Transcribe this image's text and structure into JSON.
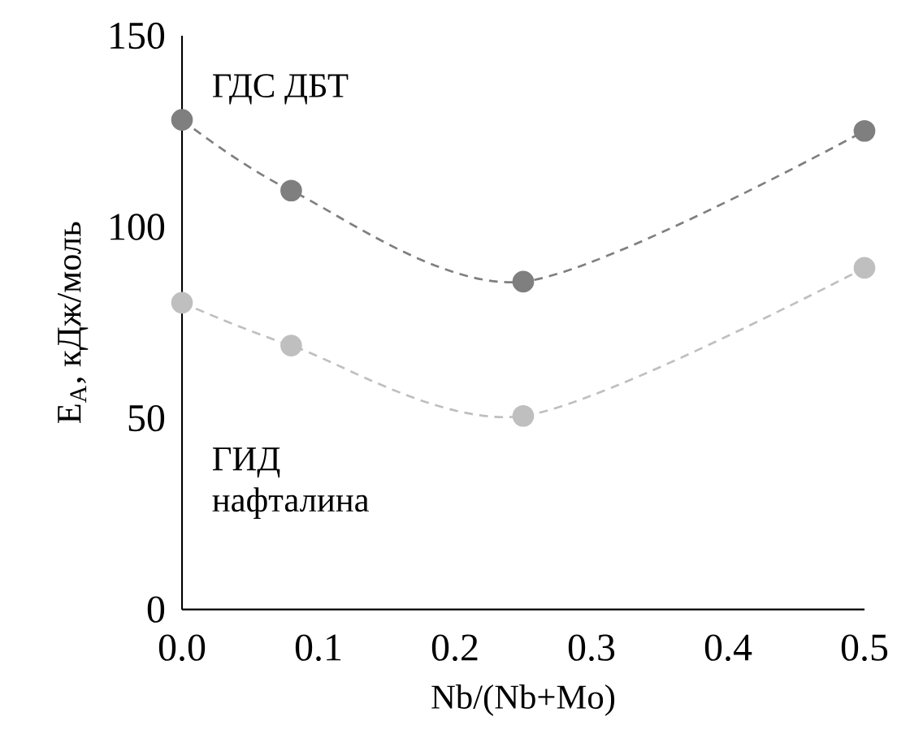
{
  "chart_data": {
    "type": "line",
    "xlabel": "Nb/(Nb+Mo)",
    "ylabel": "E$_{A}$, кДж/моль",
    "x": [
      0,
      0.08,
      0.25,
      0.5
    ],
    "series": [
      {
        "color": "#7f7f7f",
        "values": [
          128,
          109.5,
          85.7,
          125.1
        ]
      },
      {
        "color": "#bfbfbf",
        "values": [
          80.2,
          69,
          50.6,
          89.3
        ]
      }
    ],
    "annotations": [
      "ГДС ДБТ",
      "ГИД нафталина"
    ],
    "xlim": [
      0,
      0.5
    ],
    "xticks": [
      {
        "value": 0,
        "label": "0.0"
      },
      {
        "value": 0.1,
        "label": "0.1"
      },
      {
        "value": 0.2,
        "label": "0.2"
      },
      {
        "value": 0.3,
        "label": "0.3"
      },
      {
        "value": 0.4,
        "label": "0.4"
      },
      {
        "value": 0.5,
        "label": "0.5"
      }
    ],
    "ylim": [
      0,
      150
    ],
    "yticks": [
      0,
      50,
      100,
      150
    ],
    "marker": "circle",
    "line_style": "dashed"
  }
}
